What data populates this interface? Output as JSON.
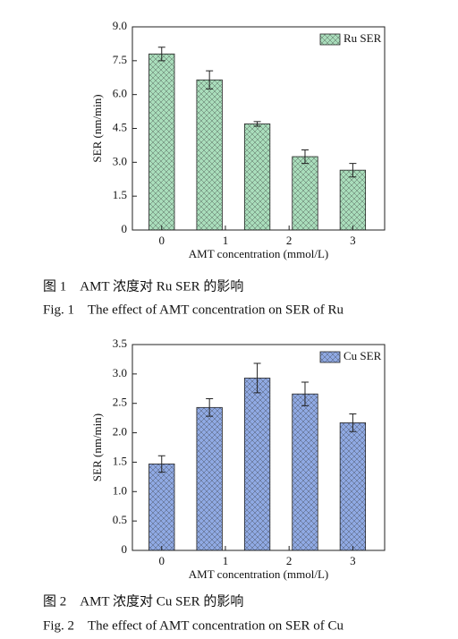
{
  "chart_data": [
    {
      "type": "bar",
      "x_label": "AMT concentration (mmol/L)",
      "y_label": "SER (nm/min)",
      "x": [
        0,
        0.75,
        1.5,
        2.25,
        3
      ],
      "xlim": [
        -0.46,
        3.5
      ],
      "xticks": [
        0,
        1,
        2,
        3
      ],
      "ylim": [
        0,
        9
      ],
      "yticks": [
        0,
        1.5,
        {
          "value": 3,
          "label": "3.0"
        },
        4.5,
        {
          "value": 6,
          "label": "6.0"
        },
        7.5,
        {
          "value": 9,
          "label": "9.0"
        }
      ],
      "series": [
        {
          "name": "Ru SER",
          "color": "#a9ddbb",
          "values": [
            7.8,
            6.65,
            4.7,
            3.25,
            2.65
          ],
          "errors": [
            0.3,
            0.4,
            0.1,
            0.3,
            0.3
          ]
        }
      ],
      "legend": "upper right",
      "grid": false,
      "caption": "图 1　AMT 浓度对 Ru SER 的影响",
      "caption_en": "Fig. 1　The effect of AMT concentration on SER of Ru"
    },
    {
      "type": "bar",
      "x_label": "AMT concentration (mmol/L)",
      "y_label": "SER (nm/min)",
      "x": [
        0,
        0.75,
        1.5,
        2.25,
        3
      ],
      "xlim": [
        -0.46,
        3.5
      ],
      "xticks": [
        0,
        1,
        2,
        3
      ],
      "ylim": [
        0,
        3.5
      ],
      "yticks": [
        0,
        0.5,
        {
          "value": 1,
          "label": "1.0"
        },
        1.5,
        {
          "value": 2,
          "label": "2.0"
        },
        2.5,
        {
          "value": 3,
          "label": "3.0"
        },
        3.5
      ],
      "series": [
        {
          "name": "Cu SER",
          "color": "#8fa9e3",
          "values": [
            1.47,
            2.43,
            2.93,
            2.66,
            2.17
          ],
          "errors": [
            0.14,
            0.15,
            0.25,
            0.2,
            0.15
          ]
        }
      ],
      "legend": "upper right",
      "grid": false,
      "caption": "图 2　AMT 浓度对 Cu SER 的影响",
      "caption_en": "Fig. 2　The effect of AMT concentration on SER of Cu"
    }
  ]
}
